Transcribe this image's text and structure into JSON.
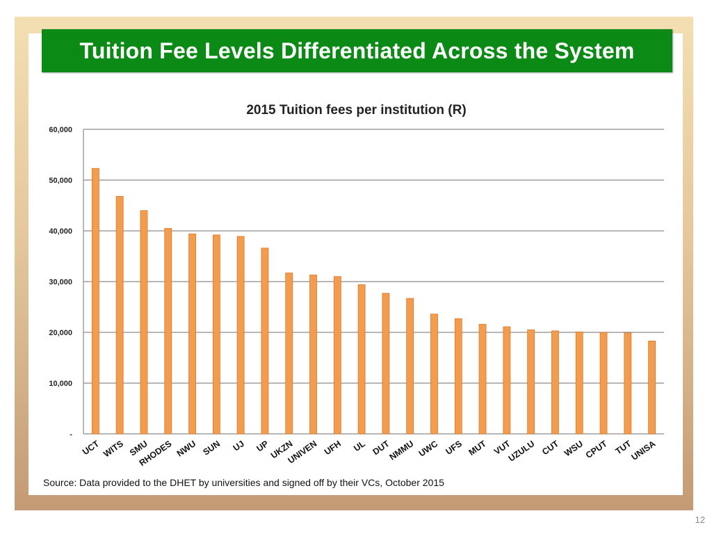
{
  "slide": {
    "title": "Tuition Fee Levels Differentiated Across the System",
    "source": "Source: Data provided to the DHET by universities and signed off by their VCs, October 2015",
    "page_number": "12"
  },
  "colors": {
    "title_bg": "#0b8a15",
    "bar_fill": "#f39c4e",
    "bar_stroke": "#d9782c",
    "grid": "#8c8c8c"
  },
  "chart_data": {
    "type": "bar",
    "title": "2015 Tuition fees per institution (R)",
    "xlabel": "",
    "ylabel": "",
    "ylim": [
      0,
      60000
    ],
    "yticks": [
      0,
      10000,
      20000,
      30000,
      40000,
      50000,
      60000
    ],
    "ytick_labels": [
      "-",
      "10,000",
      "20,000",
      "30,000",
      "40,000",
      "50,000",
      "60,000"
    ],
    "grid": true,
    "categories": [
      "UCT",
      "WITS",
      "SMU",
      "RHODES",
      "NWU",
      "SUN",
      "UJ",
      "UP",
      "UKZN",
      "UNIVEN",
      "UFH",
      "UL",
      "DUT",
      "NMMU",
      "UWC",
      "UFS",
      "MUT",
      "VUT",
      "UZULU",
      "CUT",
      "WSU",
      "CPUT",
      "TUT",
      "UNISA"
    ],
    "values": [
      52300,
      46800,
      44000,
      40500,
      39400,
      39200,
      38900,
      36600,
      31700,
      31300,
      31000,
      29400,
      27700,
      26700,
      23600,
      22700,
      21600,
      21100,
      20500,
      20300,
      20100,
      20000,
      19900,
      18300
    ]
  }
}
